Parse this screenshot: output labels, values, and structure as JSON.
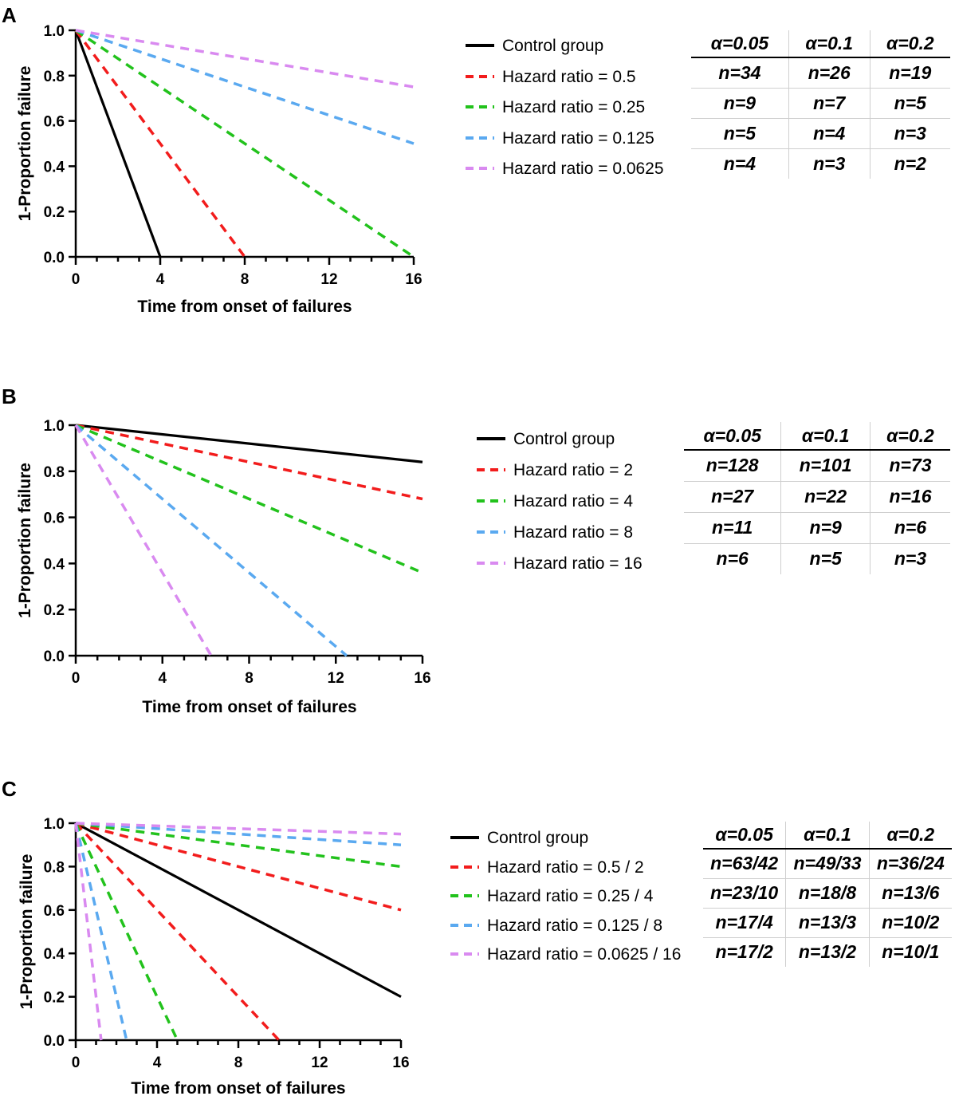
{
  "colors": {
    "control": "#000000",
    "red": "#f21c1c",
    "green": "#22c21c",
    "blue": "#5aa9f0",
    "violet": "#d98af0",
    "grid_border": "#cfcfcf"
  },
  "chart_data": [
    {
      "panel": "A",
      "type": "line",
      "ylabel": "1-Proportion failure",
      "xlabel": "Time from onset of failures",
      "xlim": [
        0,
        16
      ],
      "ylim": [
        0,
        1
      ],
      "xticks": [
        "0",
        "4",
        "8",
        "12",
        "16"
      ],
      "yticks": [
        "0.0",
        "0.2",
        "0.4",
        "0.6",
        "0.8",
        "1.0"
      ],
      "series": [
        {
          "name": "Control group",
          "color_key": "control",
          "dashed": false,
          "x": [
            0,
            4
          ],
          "y": [
            1.0,
            0.0
          ]
        },
        {
          "name": "Hazard ratio = 0.5",
          "color_key": "red",
          "dashed": true,
          "x": [
            0,
            8
          ],
          "y": [
            1.0,
            0.0
          ]
        },
        {
          "name": "Hazard ratio = 0.25",
          "color_key": "green",
          "dashed": true,
          "x": [
            0,
            16
          ],
          "y": [
            1.0,
            0.0
          ]
        },
        {
          "name": "Hazard ratio = 0.125",
          "color_key": "blue",
          "dashed": true,
          "x": [
            0,
            16
          ],
          "y": [
            1.0,
            0.5
          ]
        },
        {
          "name": "Hazard ratio = 0.0625",
          "color_key": "violet",
          "dashed": true,
          "x": [
            0,
            16
          ],
          "y": [
            1.0,
            0.75
          ]
        }
      ],
      "table": {
        "headers": [
          "α=0.05",
          "α=0.1",
          "α=0.2"
        ],
        "rows": [
          [
            "n=34",
            "n=26",
            "n=19"
          ],
          [
            "n=9",
            "n=7",
            "n=5"
          ],
          [
            "n=5",
            "n=4",
            "n=3"
          ],
          [
            "n=4",
            "n=3",
            "n=2"
          ]
        ]
      }
    },
    {
      "panel": "B",
      "type": "line",
      "ylabel": "1-Proportion failure",
      "xlabel": "Time from onset of failures",
      "xlim": [
        0,
        16
      ],
      "ylim": [
        0,
        1
      ],
      "xticks": [
        "0",
        "4",
        "8",
        "12",
        "16"
      ],
      "yticks": [
        "0.0",
        "0.2",
        "0.4",
        "0.6",
        "0.8",
        "1.0"
      ],
      "series": [
        {
          "name": "Control group",
          "color_key": "control",
          "dashed": false,
          "x": [
            0,
            16
          ],
          "y": [
            1.0,
            0.84
          ]
        },
        {
          "name": "Hazard ratio = 2",
          "color_key": "red",
          "dashed": true,
          "x": [
            0,
            16
          ],
          "y": [
            1.0,
            0.68
          ]
        },
        {
          "name": "Hazard ratio = 4",
          "color_key": "green",
          "dashed": true,
          "x": [
            0,
            16
          ],
          "y": [
            1.0,
            0.36
          ]
        },
        {
          "name": "Hazard ratio = 8",
          "color_key": "blue",
          "dashed": true,
          "x": [
            0,
            12.5
          ],
          "y": [
            1.0,
            0.0
          ]
        },
        {
          "name": "Hazard ratio = 16",
          "color_key": "violet",
          "dashed": true,
          "x": [
            0,
            6.25
          ],
          "y": [
            1.0,
            0.0
          ]
        }
      ],
      "table": {
        "headers": [
          "α=0.05",
          "α=0.1",
          "α=0.2"
        ],
        "rows": [
          [
            "n=128",
            "n=101",
            "n=73"
          ],
          [
            "n=27",
            "n=22",
            "n=16"
          ],
          [
            "n=11",
            "n=9",
            "n=6"
          ],
          [
            "n=6",
            "n=5",
            "n=3"
          ]
        ]
      }
    },
    {
      "panel": "C",
      "type": "line",
      "ylabel": "1-Proportion failure",
      "xlabel": "Time from onset of failures",
      "xlim": [
        0,
        16
      ],
      "ylim": [
        0,
        1
      ],
      "xticks": [
        "0",
        "4",
        "8",
        "12",
        "16"
      ],
      "yticks": [
        "0.0",
        "0.2",
        "0.4",
        "0.6",
        "0.8",
        "1.0"
      ],
      "series": [
        {
          "name": "Control group",
          "color_key": "control",
          "dashed": false,
          "x": [
            0,
            16
          ],
          "y": [
            1.0,
            0.2
          ]
        },
        {
          "name": "Hazard ratio = 0.5 / 2",
          "color_key": "red",
          "dashed": true,
          "lines": [
            {
              "x": [
                0,
                16
              ],
              "y": [
                1.0,
                0.6
              ]
            },
            {
              "x": [
                0,
                10
              ],
              "y": [
                1.0,
                0.0
              ]
            }
          ]
        },
        {
          "name": "Hazard ratio = 0.25 / 4",
          "color_key": "green",
          "dashed": true,
          "lines": [
            {
              "x": [
                0,
                16
              ],
              "y": [
                1.0,
                0.8
              ]
            },
            {
              "x": [
                0,
                5
              ],
              "y": [
                1.0,
                0.0
              ]
            }
          ]
        },
        {
          "name": "Hazard ratio = 0.125 / 8",
          "color_key": "blue",
          "dashed": true,
          "lines": [
            {
              "x": [
                0,
                16
              ],
              "y": [
                1.0,
                0.9
              ]
            },
            {
              "x": [
                0,
                2.5
              ],
              "y": [
                1.0,
                0.0
              ]
            }
          ]
        },
        {
          "name": "Hazard ratio = 0.0625 / 16",
          "color_key": "violet",
          "dashed": true,
          "lines": [
            {
              "x": [
                0,
                16
              ],
              "y": [
                1.0,
                0.95
              ]
            },
            {
              "x": [
                0,
                1.25
              ],
              "y": [
                1.0,
                0.0
              ]
            }
          ]
        }
      ],
      "table": {
        "headers": [
          "α=0.05",
          "α=0.1",
          "α=0.2"
        ],
        "rows": [
          [
            "n=63/42",
            "n=49/33",
            "n=36/24"
          ],
          [
            "n=23/10",
            "n=18/8",
            "n=13/6"
          ],
          [
            "n=17/4",
            "n=13/3",
            "n=10/2"
          ],
          [
            "n=17/2",
            "n=13/2",
            "n=10/1"
          ]
        ]
      }
    }
  ]
}
